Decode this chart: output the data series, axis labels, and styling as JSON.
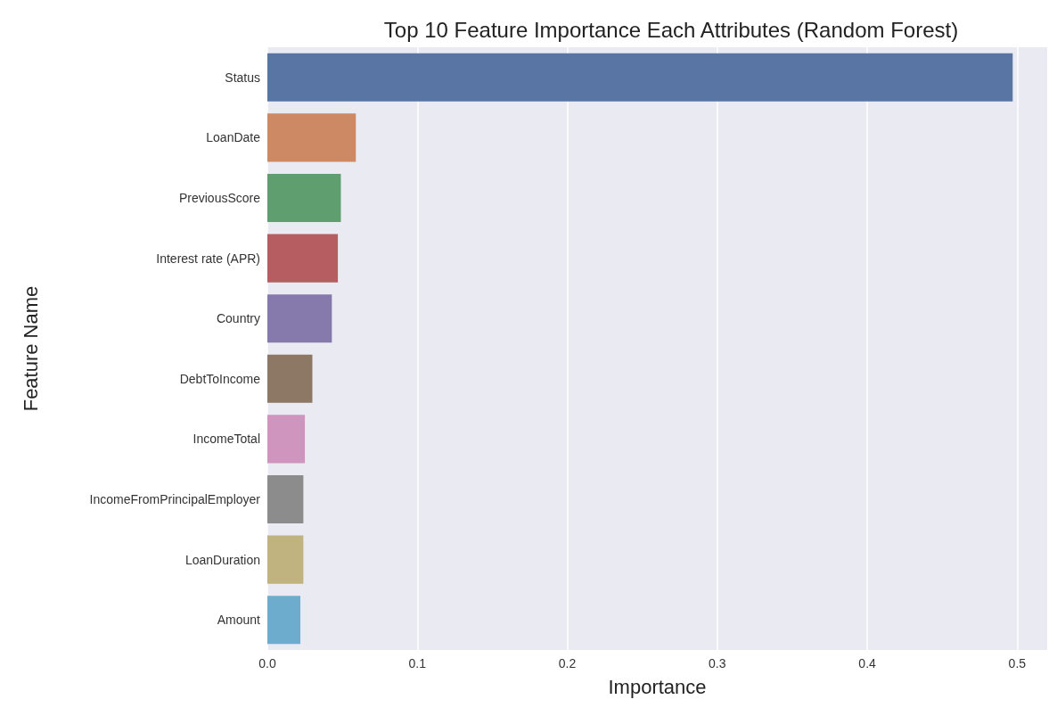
{
  "chart_data": {
    "type": "bar",
    "orientation": "horizontal",
    "title": "Top 10 Feature Importance Each Attributes (Random Forest)",
    "xlabel": "Importance",
    "ylabel": "Feature Name",
    "categories": [
      "Status",
      "LoanDate",
      "PreviousScore",
      "Interest rate (APR)",
      "Country",
      "DebtToIncome",
      "IncomeTotal",
      "IncomeFromPrincipalEmployer",
      "LoanDuration",
      "Amount"
    ],
    "values": [
      0.497,
      0.059,
      0.049,
      0.047,
      0.043,
      0.03,
      0.025,
      0.024,
      0.024,
      0.022
    ],
    "colors": [
      "#5875a4",
      "#cc8963",
      "#5f9e6e",
      "#b55d60",
      "#857aab",
      "#8d7866",
      "#d095bf",
      "#8c8c8c",
      "#c1b37f",
      "#6daccc"
    ],
    "xlim": [
      0,
      0.52
    ],
    "xticks": [
      {
        "value": 0,
        "label": "0.0"
      },
      0.1,
      0.2,
      0.3,
      0.4,
      0.5
    ],
    "grid": "x"
  }
}
